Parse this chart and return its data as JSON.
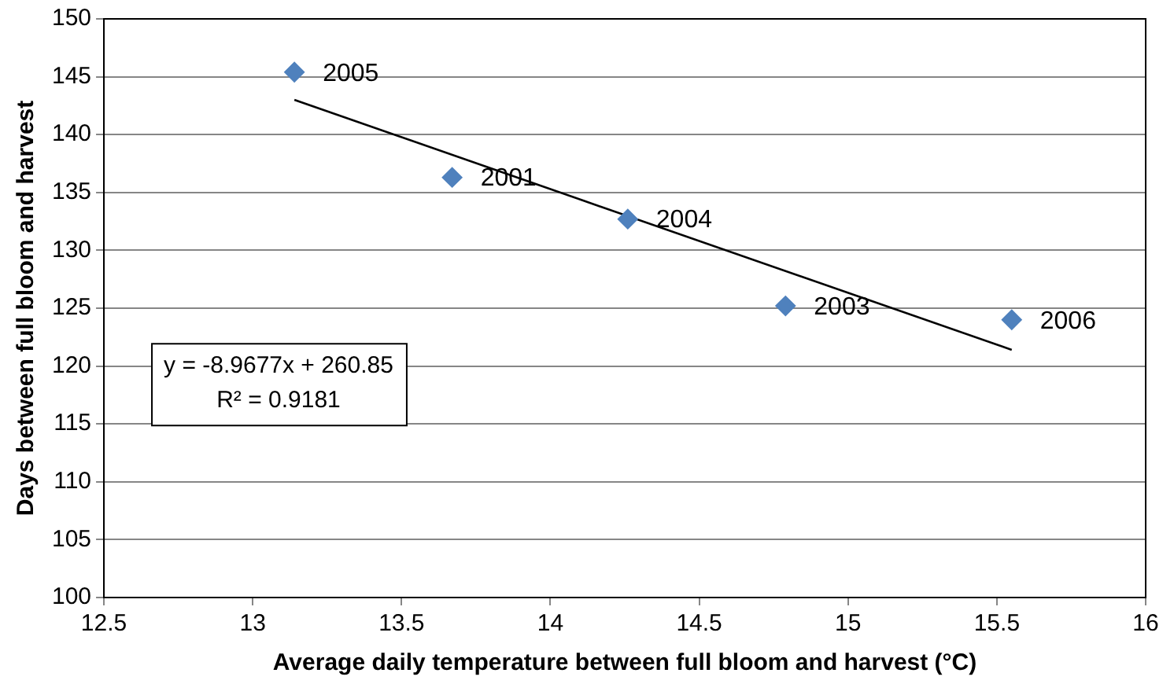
{
  "chart_data": {
    "type": "scatter",
    "xlabel": "Average daily temperature between full bloom and harvest (°C)",
    "ylabel": "Days between full bloom and harvest",
    "xlim": [
      12.5,
      16
    ],
    "xticks": [
      12.5,
      13,
      13.5,
      14,
      14.5,
      15,
      15.5,
      16
    ],
    "ylim": [
      100,
      150
    ],
    "yticks": [
      100,
      105,
      110,
      115,
      120,
      125,
      130,
      135,
      140,
      145,
      150
    ],
    "grid": "y",
    "legend": false,
    "marker": "diamond",
    "series": [
      {
        "type": "scatter",
        "color": "#4f81bd",
        "x": [
          13.14,
          13.67,
          14.26,
          14.79,
          15.55
        ],
        "values": [
          145.4,
          136.3,
          132.7,
          125.2,
          124.0
        ]
      },
      {
        "type": "line",
        "color": "#000000",
        "x": [
          13.14,
          15.55
        ],
        "values": [
          143.0,
          121.4
        ],
        "marker": "none",
        "line_style": "solid"
      }
    ],
    "annotations": [
      {
        "text": "2005",
        "x": 13.14,
        "y": 145.4
      },
      {
        "text": "2001",
        "x": 13.67,
        "y": 136.3
      },
      {
        "text": "2004",
        "x": 14.26,
        "y": 132.7
      },
      {
        "text": "2003",
        "x": 14.79,
        "y": 125.2
      },
      {
        "text": "2006",
        "x": 15.55,
        "y": 124.0
      },
      "y = -8.9677x + 260.85",
      "R² = 0.9181"
    ]
  }
}
